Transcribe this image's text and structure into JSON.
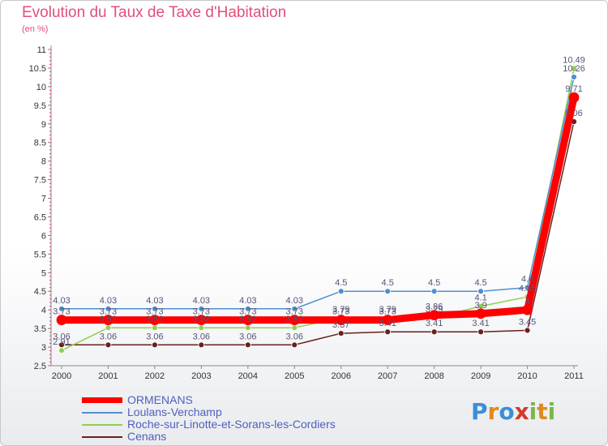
{
  "title": "Evolution du Taux de Taxe d'Habitation",
  "unit": "(en %)",
  "logo": {
    "text": "Proxiti",
    "letters": [
      {
        "ch": "P",
        "color": "#3a8fd8"
      },
      {
        "ch": "r",
        "color": "#e08a1e"
      },
      {
        "ch": "o",
        "color": "#3a8fd8"
      },
      {
        "ch": "x",
        "color": "#d23c2a"
      },
      {
        "ch": "i",
        "color": "#7ab648"
      },
      {
        "ch": "t",
        "color": "#e08a1e"
      },
      {
        "ch": "i",
        "color": "#7ab648"
      }
    ]
  },
  "chart_data": {
    "type": "line",
    "title": "Evolution du Taux de Taxe d'Habitation",
    "ylabel": "(en %)",
    "xlabel": "",
    "x": [
      "2000",
      "2001",
      "2002",
      "2003",
      "2004",
      "2005",
      "2006",
      "2007",
      "2008",
      "2009",
      "2010",
      "2011"
    ],
    "yticks": [
      "2.5",
      "3",
      "3.5",
      "4",
      "4.5",
      "5",
      "5.5",
      "6",
      "6.5",
      "7",
      "7.5",
      "8",
      "8.5",
      "9",
      "9.5",
      "10",
      "10.5",
      "11"
    ],
    "ylim": [
      2.5,
      11
    ],
    "grid": false,
    "legend_position": "bottom-left",
    "series": [
      {
        "name": "ORMENANS",
        "color": "#ff0000",
        "values": [
          3.73,
          3.73,
          3.73,
          3.73,
          3.73,
          3.73,
          3.73,
          3.73,
          3.86,
          3.9,
          4.0,
          9.71
        ],
        "labels": [
          "3.73",
          "3.73",
          "3.73",
          "3.73",
          "3.73",
          "3.73",
          "3.73",
          "3.73",
          "3.86",
          "3.9",
          "4",
          "9.71"
        ]
      },
      {
        "name": "Loulans-Verchamp",
        "color": "#4f8fd0",
        "values": [
          4.03,
          4.03,
          4.03,
          4.03,
          4.03,
          4.03,
          4.5,
          4.5,
          4.5,
          4.5,
          4.6,
          10.26
        ],
        "labels": [
          "4.03",
          "4.03",
          "4.03",
          "4.03",
          "4.03",
          "4.03",
          "4.5",
          "4.5",
          "4.5",
          "4.5",
          "4.6",
          "10.26"
        ]
      },
      {
        "name": "Roche-sur-Linotte-et-Sorans-les-Cordiers",
        "color": "#90d050",
        "values": [
          2.91,
          3.52,
          3.52,
          3.52,
          3.52,
          3.52,
          3.79,
          3.79,
          3.79,
          4.1,
          4.35,
          10.49
        ],
        "labels": [
          "2.91",
          "3.52",
          "3.52",
          "3.52",
          "3.52",
          "3.52",
          "3.79",
          "3.79",
          "3.79",
          "4.1",
          "4.35",
          "10.49"
        ]
      },
      {
        "name": "Cenans",
        "color": "#6b1f1f",
        "values": [
          3.06,
          3.06,
          3.06,
          3.06,
          3.06,
          3.06,
          3.37,
          3.41,
          3.41,
          3.41,
          3.45,
          9.06
        ],
        "labels": [
          "3.06",
          "3.06",
          "3.06",
          "3.06",
          "3.06",
          "3.06",
          "3.37",
          "3.41",
          "3.41",
          "3.41",
          "3.45",
          "9.06"
        ]
      }
    ]
  }
}
